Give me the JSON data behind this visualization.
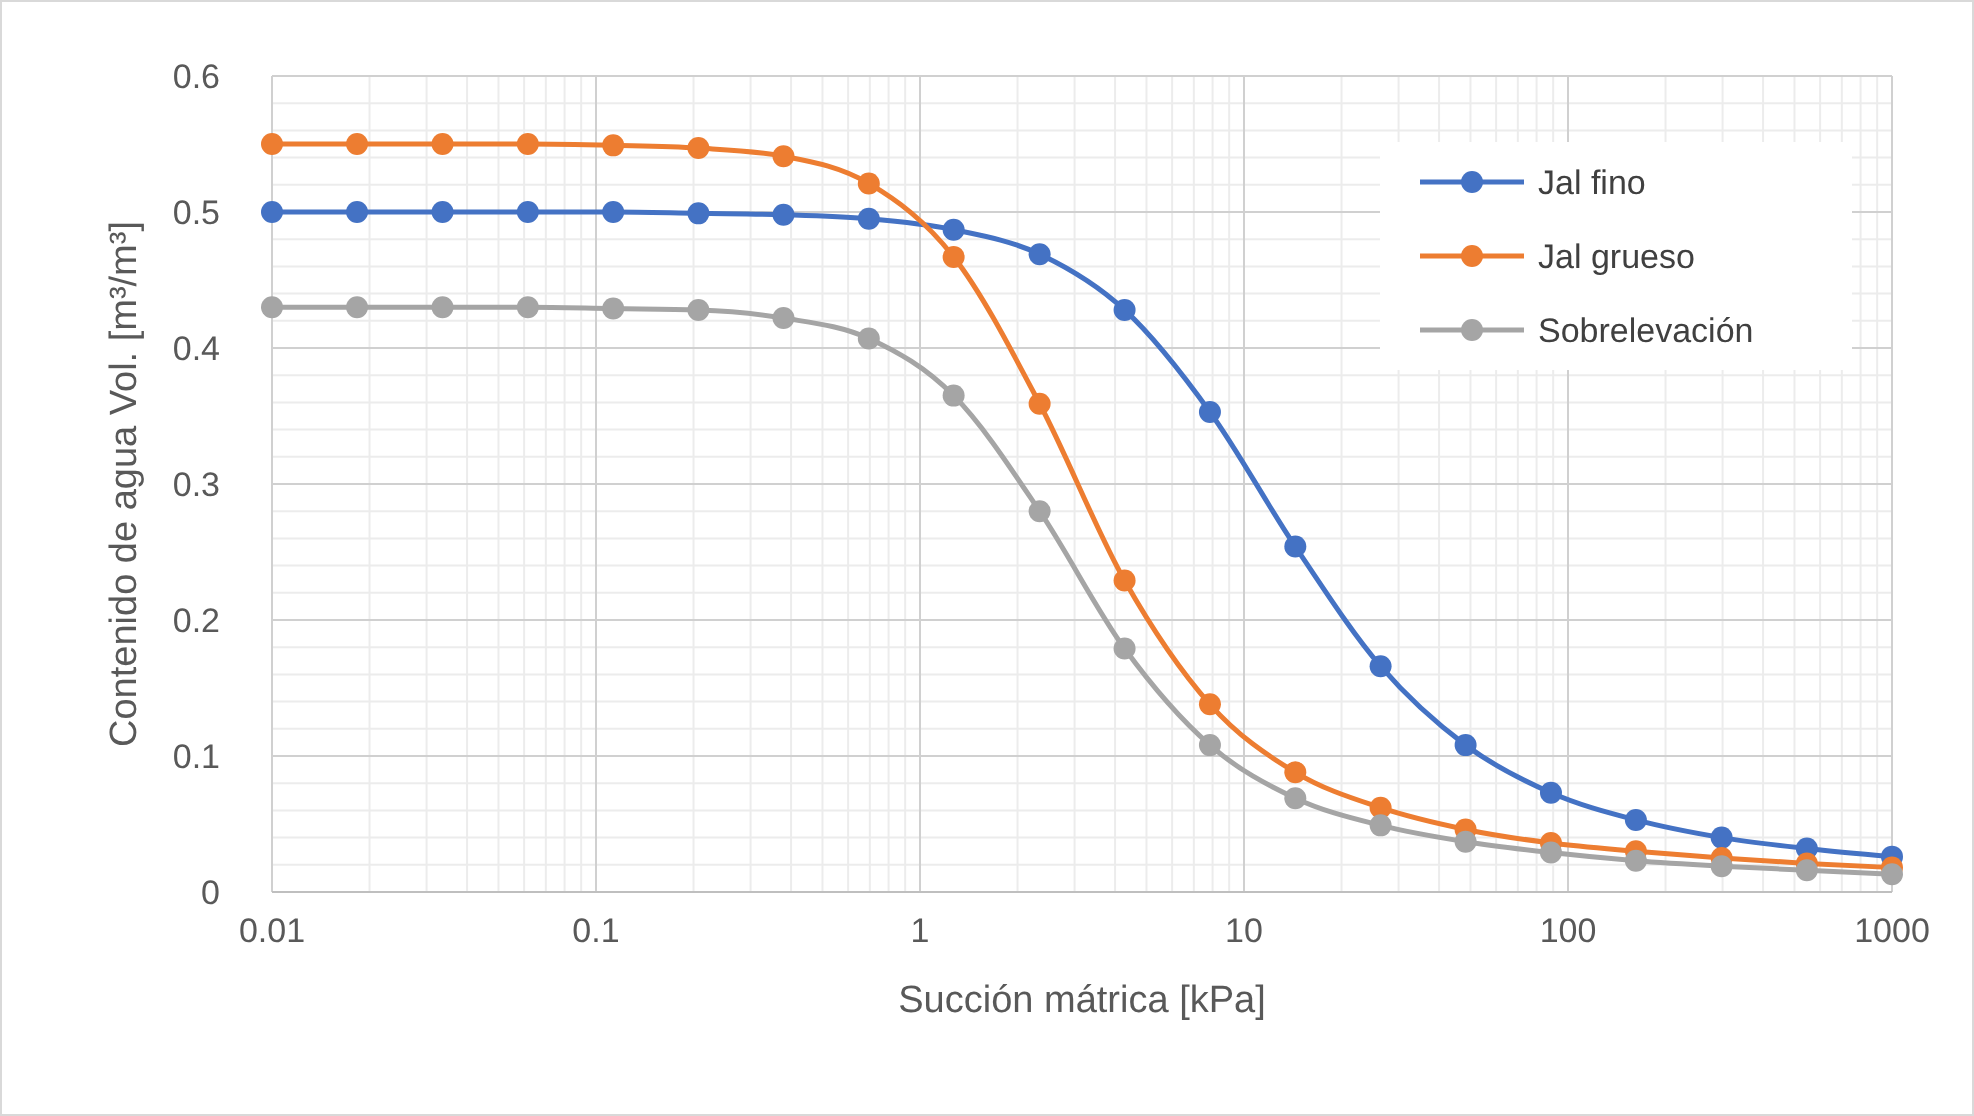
{
  "chart_data": {
    "type": "line",
    "xlabel": "Succión mátrica [kPa]",
    "ylabel": "Contenido de agua Vol. [m³/m³]",
    "x": [
      0.01,
      0.0183,
      0.0336,
      0.0616,
      0.113,
      0.207,
      0.379,
      0.695,
      1.27,
      2.34,
      4.28,
      7.85,
      14.4,
      26.4,
      48.3,
      88.6,
      162,
      298,
      546,
      1000
    ],
    "series": [
      {
        "name": "Jal fino",
        "color": "#4472c4",
        "values": [
          0.5,
          0.5,
          0.5,
          0.5,
          0.5,
          0.499,
          0.498,
          0.495,
          0.487,
          0.469,
          0.428,
          0.353,
          0.254,
          0.166,
          0.108,
          0.073,
          0.053,
          0.04,
          0.032,
          0.026
        ]
      },
      {
        "name": "Jal grueso",
        "color": "#ed7d31",
        "values": [
          0.55,
          0.55,
          0.55,
          0.55,
          0.549,
          0.547,
          0.541,
          0.521,
          0.467,
          0.359,
          0.229,
          0.138,
          0.088,
          0.062,
          0.046,
          0.036,
          0.03,
          0.025,
          0.021,
          0.018
        ]
      },
      {
        "name": "Sobrelevación",
        "color": "#a5a5a5",
        "values": [
          0.43,
          0.43,
          0.43,
          0.43,
          0.429,
          0.428,
          0.422,
          0.407,
          0.365,
          0.28,
          0.179,
          0.108,
          0.069,
          0.049,
          0.037,
          0.029,
          0.023,
          0.019,
          0.016,
          0.013
        ]
      }
    ],
    "log": "x",
    "xlim": [
      0.01,
      1000
    ],
    "xticks": [
      0.01,
      0.1,
      1,
      10,
      100,
      1000
    ],
    "ylim": [
      0,
      0.6
    ],
    "yticks": [
      0,
      0.1,
      0.2,
      0.3,
      0.4,
      0.5,
      0.6
    ],
    "grid": true,
    "legend": "top right",
    "marker": "circle",
    "line_style": "solid"
  }
}
